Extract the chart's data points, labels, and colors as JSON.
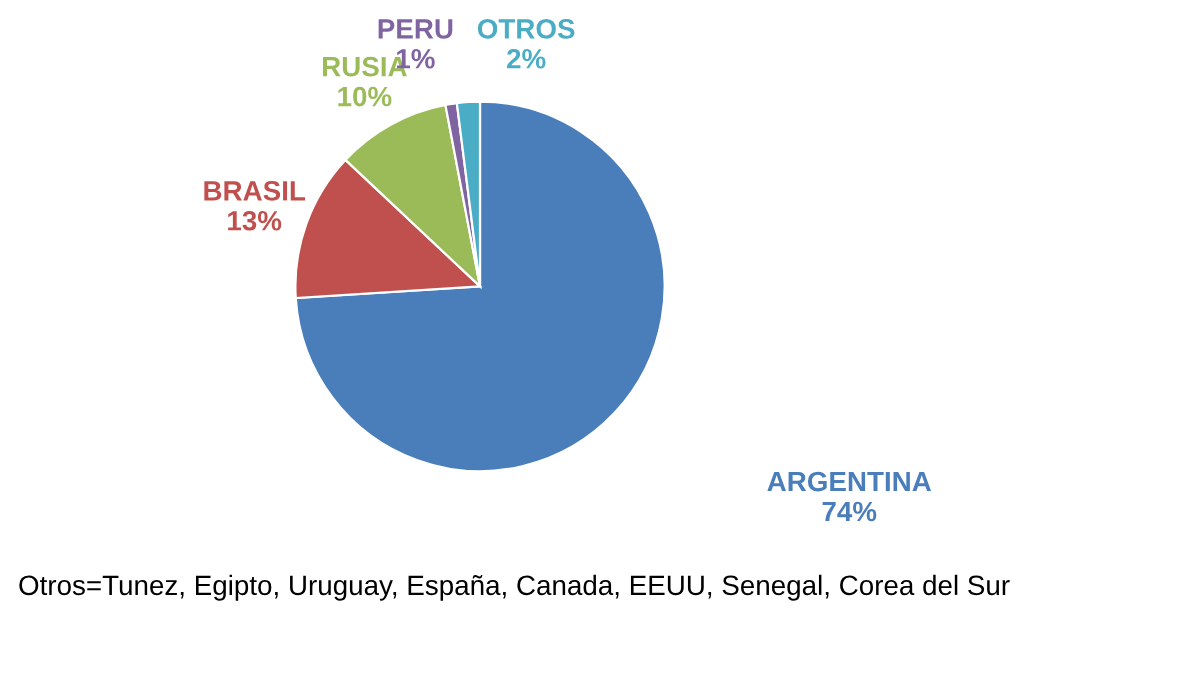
{
  "chart_data": {
    "type": "pie",
    "categories": [
      "ARGENTINA",
      "BRASIL",
      "RUSIA",
      "PERU",
      "OTROS"
    ],
    "values": [
      74,
      13,
      10,
      1,
      2
    ],
    "value_labels": [
      "74%",
      "13%",
      "10%",
      "1%",
      "2%"
    ],
    "colors": [
      "#4a7ebb",
      "#c0504d",
      "#9bbb59",
      "#8064a2",
      "#4bacc6"
    ],
    "annotations": [
      "Otros=Tunez, Egipto, Uruguay, España, Canada, EEUU, Senegal, Corea del Sur"
    ]
  }
}
